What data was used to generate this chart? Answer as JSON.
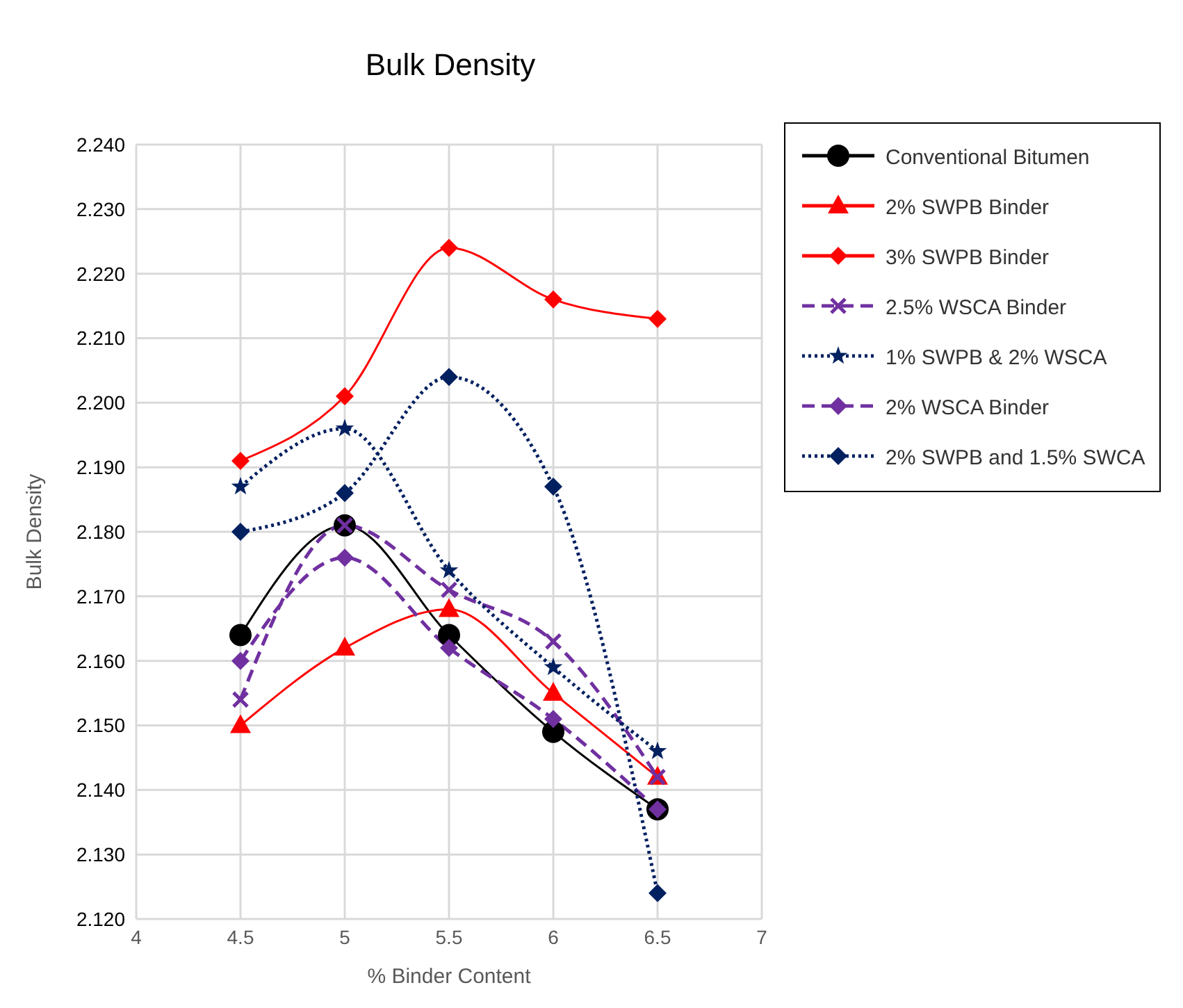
{
  "chart_data": {
    "type": "line",
    "title": "Bulk Density",
    "xlabel": "% Binder Content",
    "ylabel": "Bulk Density",
    "x": [
      4.5,
      5,
      5.5,
      6,
      6.5
    ],
    "series": [
      {
        "name": "Conventional Bitumen",
        "color": "#000000",
        "marker": "circle",
        "line_style": "solid",
        "values": [
          2.164,
          2.181,
          2.164,
          2.149,
          2.137
        ]
      },
      {
        "name": "2% SWPB Binder",
        "color": "#ff0000",
        "marker": "triangle",
        "line_style": "solid",
        "values": [
          2.15,
          2.162,
          2.168,
          2.155,
          2.142
        ]
      },
      {
        "name": "3% SWPB Binder",
        "color": "#ff0000",
        "marker": "diamond",
        "line_style": "solid",
        "values": [
          2.191,
          2.201,
          2.224,
          2.216,
          2.213
        ]
      },
      {
        "name": "2.5% WSCA Binder",
        "color": "#7030a0",
        "marker": "cross",
        "line_style": "dashed",
        "values": [
          2.154,
          2.181,
          2.171,
          2.163,
          2.142
        ]
      },
      {
        "name": "1% SWPB & 2% WSCA",
        "color": "#002060",
        "marker": "star",
        "line_style": "dotted",
        "values": [
          2.187,
          2.196,
          2.174,
          2.159,
          2.146
        ]
      },
      {
        "name": "2% WSCA Binder",
        "color": "#7030a0",
        "marker": "diamond",
        "line_style": "dashed",
        "values": [
          2.16,
          2.176,
          2.162,
          2.151,
          2.137
        ]
      },
      {
        "name": "2% SWPB and 1.5% SWCA",
        "color": "#002060",
        "marker": "diamond",
        "line_style": "dotted",
        "values": [
          2.18,
          2.186,
          2.204,
          2.187,
          2.124
        ]
      }
    ],
    "xlim": [
      4,
      7
    ],
    "xticks": [
      4,
      4.5,
      5,
      5.5,
      6,
      6.5,
      7
    ],
    "ylim": [
      2.12,
      2.24
    ],
    "yticks": [
      {
        "value": 2.12,
        "label": "2.120"
      },
      {
        "value": 2.13,
        "label": "2.130"
      },
      {
        "value": 2.14,
        "label": "2.140"
      },
      {
        "value": 2.15,
        "label": "2.150"
      },
      {
        "value": 2.16,
        "label": "2.160"
      },
      {
        "value": 2.17,
        "label": "2.170"
      },
      {
        "value": 2.18,
        "label": "2.180"
      },
      {
        "value": 2.19,
        "label": "2.190"
      },
      {
        "value": 2.2,
        "label": "2.200"
      },
      {
        "value": 2.21,
        "label": "2.210"
      },
      {
        "value": 2.22,
        "label": "2.220"
      },
      {
        "value": 2.23,
        "label": "2.230"
      },
      {
        "value": 2.24,
        "label": "2.240"
      }
    ],
    "grid": true,
    "legend": "top right"
  }
}
